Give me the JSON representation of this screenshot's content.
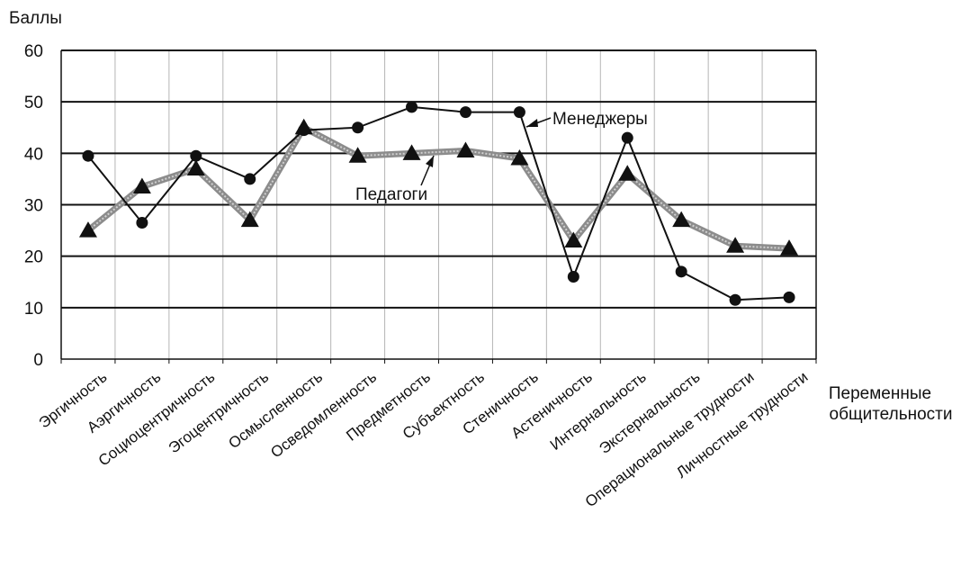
{
  "chart_data": {
    "type": "line",
    "ylabel": "Баллы",
    "xlabel_lines": [
      "Переменные",
      "общительности"
    ],
    "ylim": [
      0,
      60
    ],
    "yticks": [
      0,
      10,
      20,
      30,
      40,
      50,
      60
    ],
    "grid": {
      "horizontal": true,
      "vertical": true
    },
    "categories": [
      "Эргичность",
      "Аэргичность",
      "Социоцентричность",
      "Эгоцентричность",
      "Осмысленность",
      "Осведомленность",
      "Предметность",
      "Субъектность",
      "Стеничность",
      "Астеничность",
      "Интернальность",
      "Экстернальность",
      "Операциональные трудности",
      "Личностные трудности"
    ],
    "series": [
      {
        "name": "Менеджеры",
        "marker": "circle",
        "line_style": "solid-black",
        "color": "#111111",
        "values": [
          39.5,
          26.5,
          39.5,
          35,
          44.5,
          45,
          49,
          48,
          48,
          16,
          43,
          17,
          11.5,
          12
        ]
      },
      {
        "name": "Педагоги",
        "marker": "triangle",
        "line_style": "thick-gray",
        "color": "#8c8c8c",
        "values": [
          25,
          33.5,
          37,
          27,
          45,
          39.5,
          40,
          40.5,
          39,
          23,
          36,
          27,
          22,
          21.5
        ]
      }
    ],
    "annotations": [
      "Менеджеры",
      "Педагоги"
    ]
  }
}
